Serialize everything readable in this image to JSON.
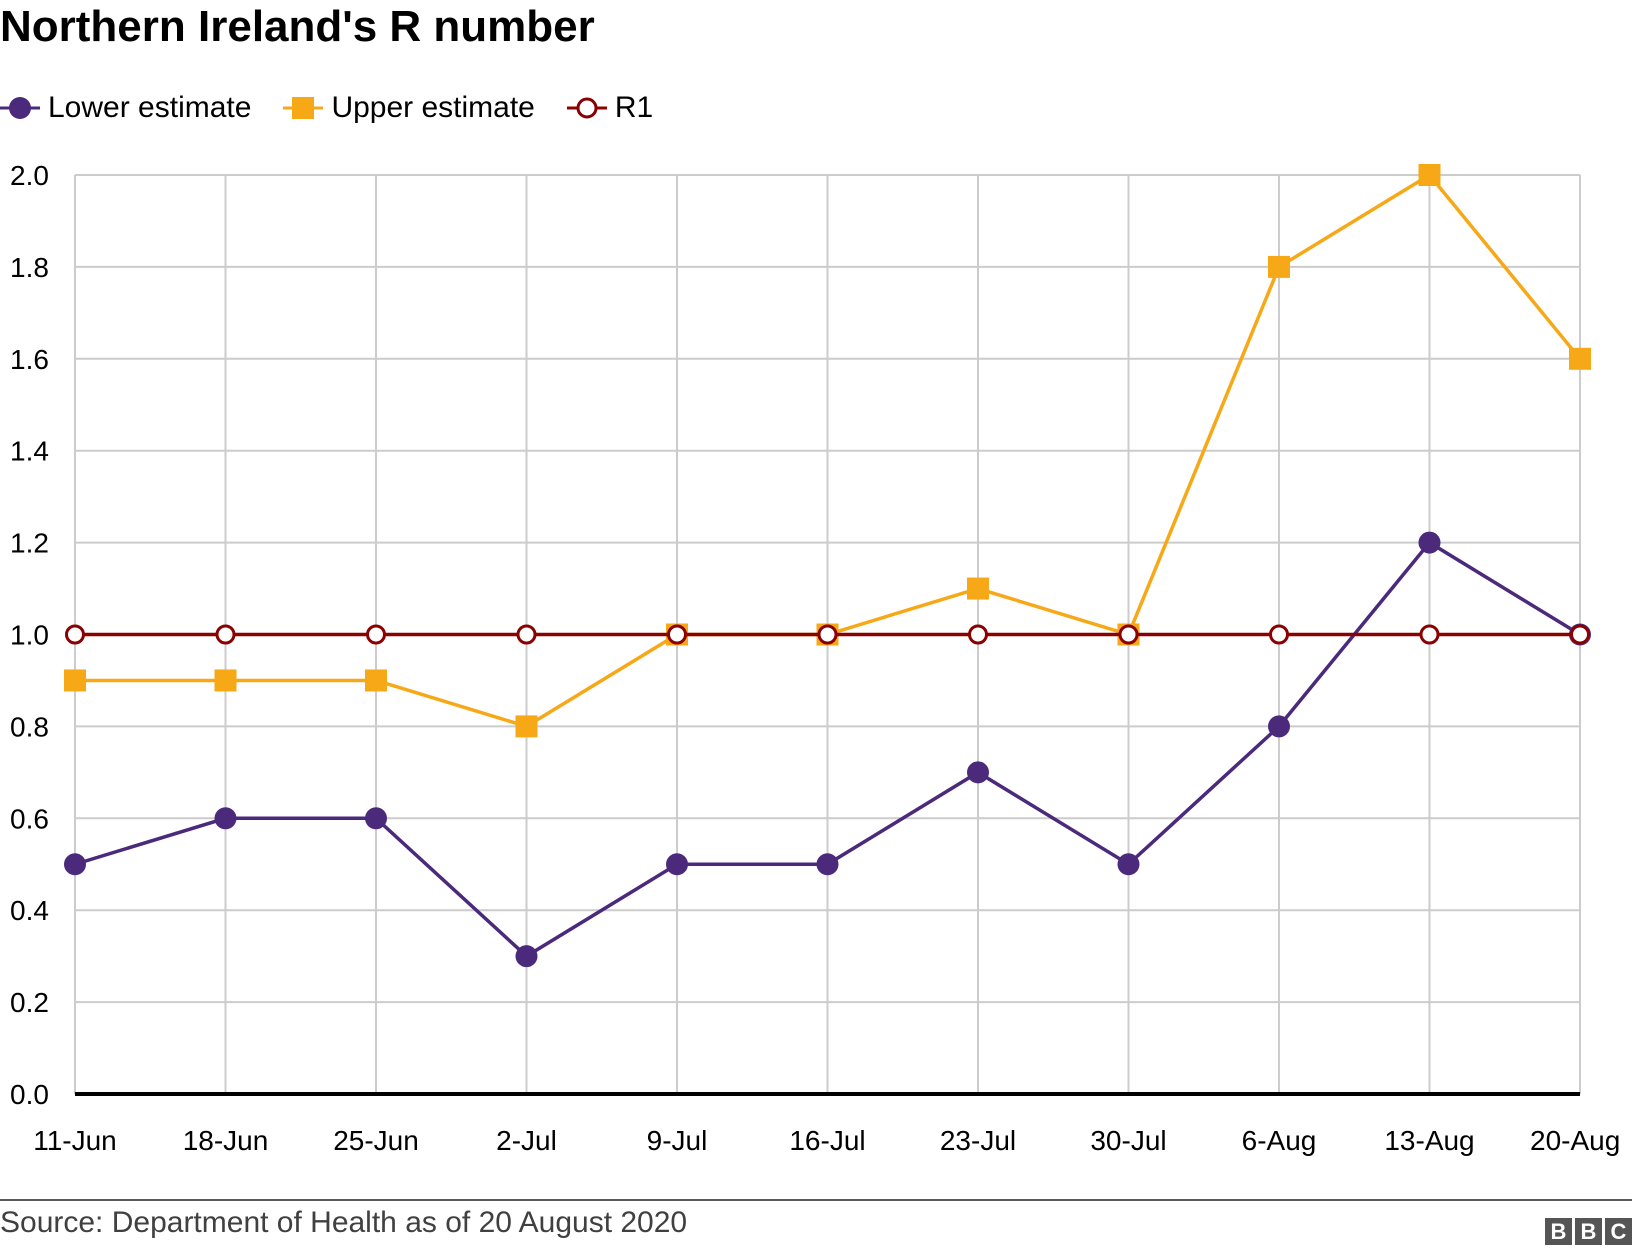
{
  "chart_data": {
    "type": "line",
    "title": "Northern Ireland's R number",
    "categories": [
      "11-Jun",
      "18-Jun",
      "25-Jun",
      "2-Jul",
      "9-Jul",
      "16-Jul",
      "23-Jul",
      "30-Jul",
      "6-Aug",
      "13-Aug",
      "20-Aug"
    ],
    "series": [
      {
        "name": "Lower estimate",
        "color": "#4b2a7b",
        "marker": "circle",
        "values": [
          0.5,
          0.6,
          0.6,
          0.3,
          0.5,
          0.5,
          0.7,
          0.5,
          0.8,
          1.2,
          1.0
        ]
      },
      {
        "name": "Upper estimate",
        "color": "#f7a817",
        "marker": "square",
        "values": [
          0.9,
          0.9,
          0.9,
          0.8,
          1.0,
          1.0,
          1.1,
          1.0,
          1.8,
          2.0,
          1.6
        ]
      },
      {
        "name": "R1",
        "color": "#8b0000",
        "marker": "open-circle",
        "values": [
          1.0,
          1.0,
          1.0,
          1.0,
          1.0,
          1.0,
          1.0,
          1.0,
          1.0,
          1.0,
          1.0
        ]
      }
    ],
    "ylim": [
      0,
      2.0
    ],
    "yticks": [
      "0.0",
      "0.2",
      "0.4",
      "0.6",
      "0.8",
      "1.0",
      "1.2",
      "1.4",
      "1.6",
      "1.8",
      "2.0"
    ],
    "grid": true,
    "legend": "top-left",
    "source": "Source: Department of Health as of 20 August 2020",
    "logo": "BBC"
  }
}
